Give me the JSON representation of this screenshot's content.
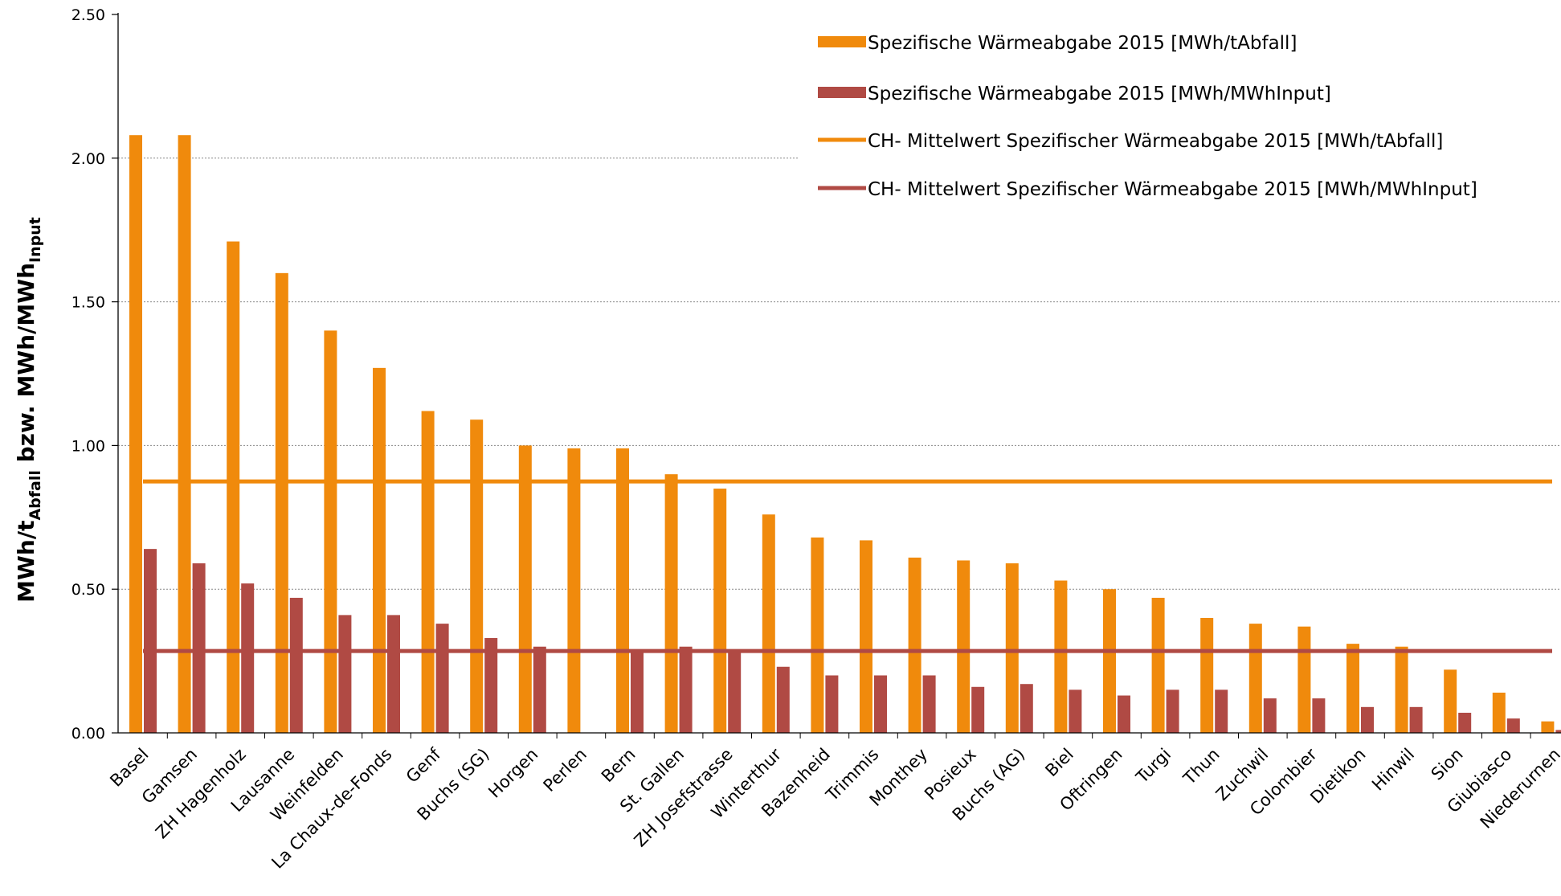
{
  "chart_data": {
    "type": "bar",
    "ylabel": "MWh/t",
    "ylabel_sub1": "Abfall",
    "ylabel_mid": " bzw. MWh/MWh",
    "ylabel_sub2": "Input",
    "ylim": [
      0,
      2.5
    ],
    "yticks": [
      "0.00",
      "0.50",
      "1.00",
      "1.50",
      "2.00",
      "2.50"
    ],
    "grid": true,
    "legend_position": "top-right",
    "categories": [
      "Basel",
      "Gamsen",
      "ZH Hagenholz",
      "Lausanne",
      "Weinfelden",
      "La Chaux-de-Fonds",
      "Genf",
      "Buchs (SG)",
      "Horgen",
      "Perlen",
      "Bern",
      "St. Gallen",
      "ZH Josefstrasse",
      "Winterthur",
      "Bazenheid",
      "Trimmis",
      "Monthey",
      "Posieux",
      "Buchs (AG)",
      "Biel",
      "Oftringen",
      "Turgi",
      "Thun",
      "Zuchwil",
      "Colombier",
      "Dietikon",
      "Hinwil",
      "Sion",
      "Giubiasco",
      "Niederurnen"
    ],
    "series": [
      {
        "name": "Spezifische Wärmeabgabe 2015 [MWh/tAbfall]",
        "kind": "bar",
        "color": "#f08a0c",
        "values": [
          2.08,
          2.08,
          1.71,
          1.6,
          1.4,
          1.27,
          1.12,
          1.09,
          1.0,
          0.99,
          0.99,
          0.9,
          0.85,
          0.76,
          0.68,
          0.67,
          0.61,
          0.6,
          0.59,
          0.53,
          0.5,
          0.47,
          0.4,
          0.38,
          0.37,
          0.31,
          0.3,
          0.22,
          0.14,
          0.04
        ]
      },
      {
        "name": "Spezifische Wärmeabgabe 2015 [MWh/MWhInput]",
        "kind": "bar",
        "color": "#b04a44",
        "values": [
          0.64,
          0.59,
          0.52,
          0.47,
          0.41,
          0.41,
          0.38,
          0.33,
          0.3,
          0.0,
          0.28,
          0.3,
          0.29,
          0.23,
          0.2,
          0.2,
          0.2,
          0.16,
          0.17,
          0.15,
          0.13,
          0.15,
          0.15,
          0.12,
          0.12,
          0.09,
          0.09,
          0.07,
          0.05,
          0.01
        ]
      },
      {
        "name": "CH- Mittelwert Spezifischer Wärmeabgabe 2015 [MWh/tAbfall]",
        "kind": "line",
        "color": "#f08a0c",
        "value": 0.875
      },
      {
        "name": "CH- Mittelwert Spezifischer Wärmeabgabe 2015 [MWh/MWhInput]",
        "kind": "line",
        "color": "#b04a44",
        "value": 0.285
      }
    ]
  }
}
